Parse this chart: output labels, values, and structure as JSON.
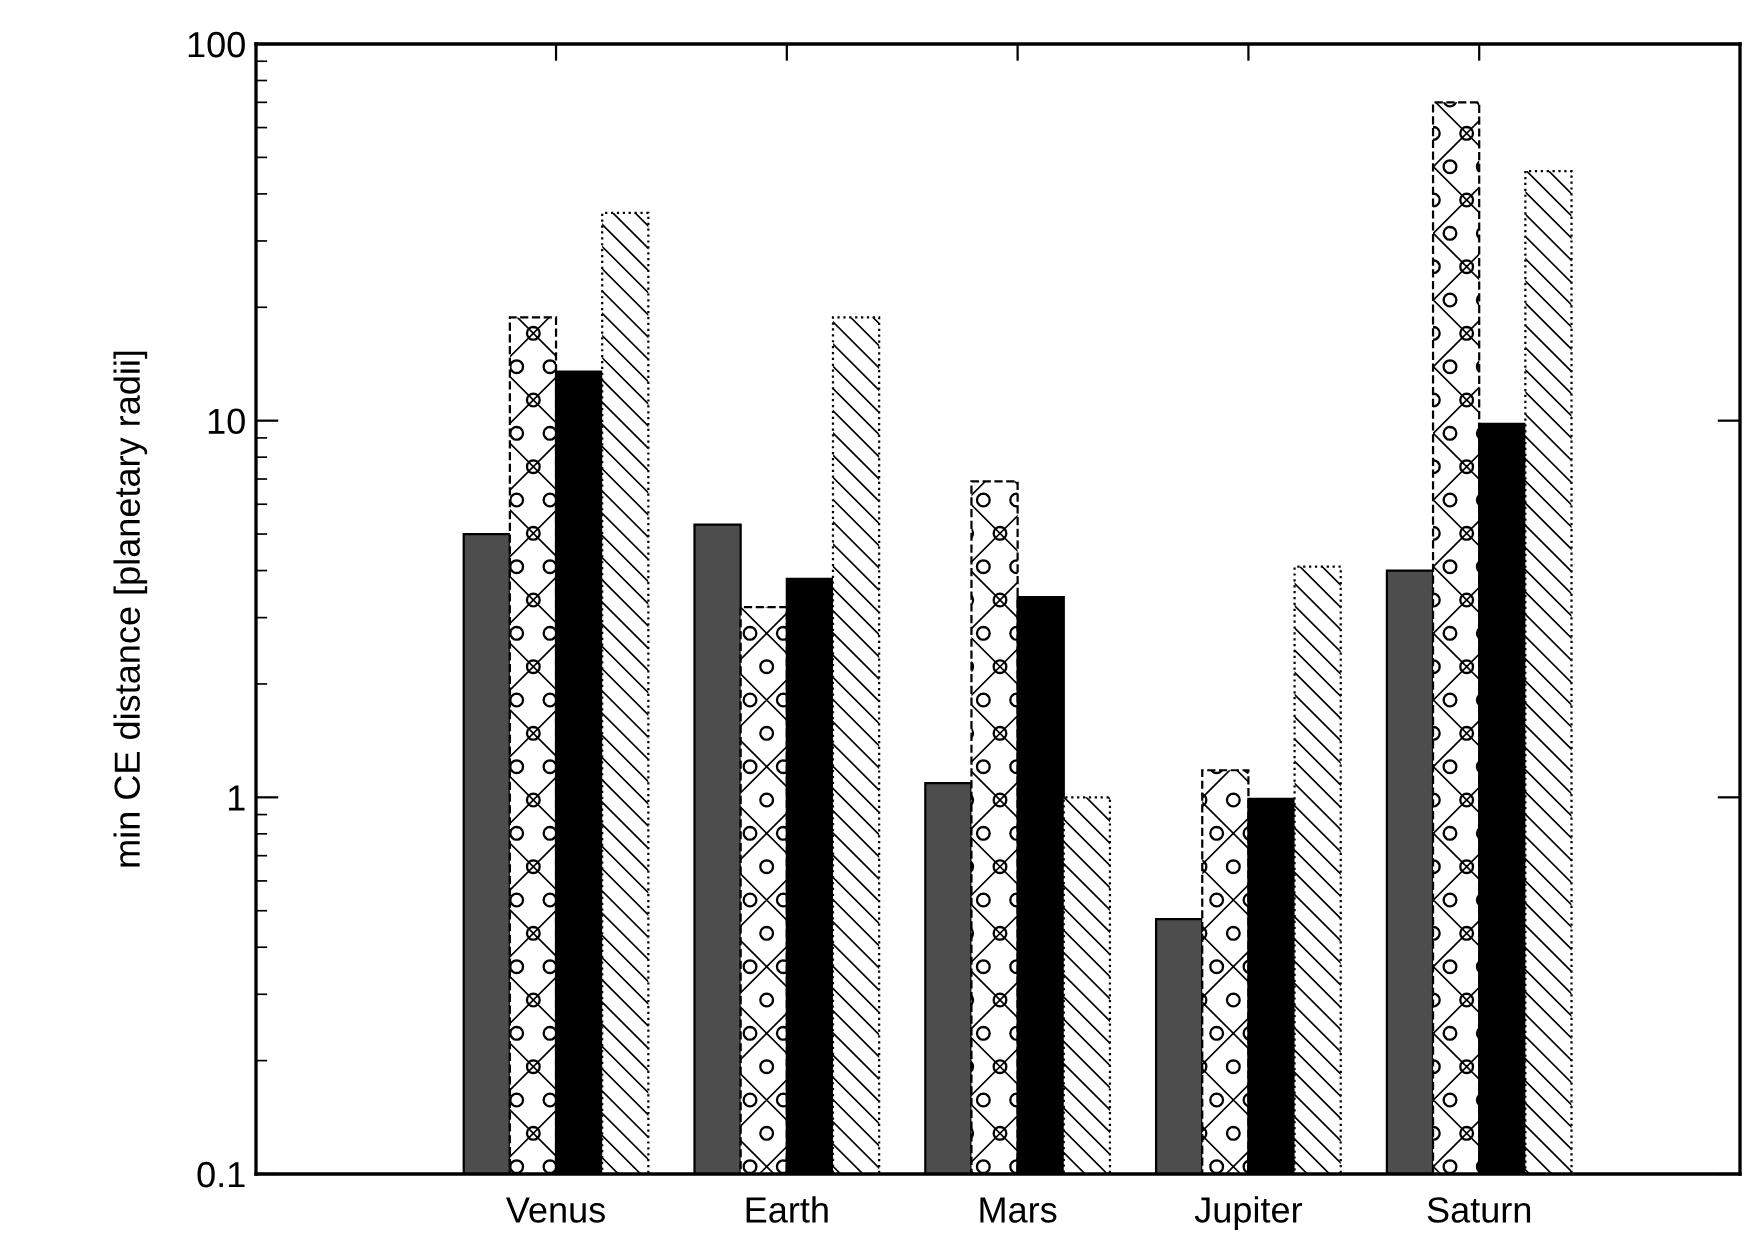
{
  "chart_data": {
    "type": "bar",
    "ylabel": "min CE distance [planetary radii]",
    "categories": [
      "Venus",
      "Earth",
      "Mars",
      "Jupiter",
      "Saturn"
    ],
    "series": [
      {
        "color": "#4d4d4d",
        "values": [
          5.0,
          5.3,
          1.09,
          0.475,
          4.0
        ]
      },
      {
        "color": "#000000",
        "values": [
          18.8,
          3.2,
          6.9,
          1.18,
          70
        ]
      },
      {
        "color": "#000000",
        "values": [
          13.5,
          3.8,
          3.4,
          0.99,
          9.8
        ]
      },
      {
        "color": "#000000",
        "values": [
          35.6,
          18.8,
          1.0,
          4.1,
          46
        ]
      }
    ],
    "log": "y",
    "ylim": [
      0.1,
      100
    ],
    "yticks": [
      0.1,
      1,
      10,
      100
    ],
    "grid": false,
    "legend": false
  }
}
